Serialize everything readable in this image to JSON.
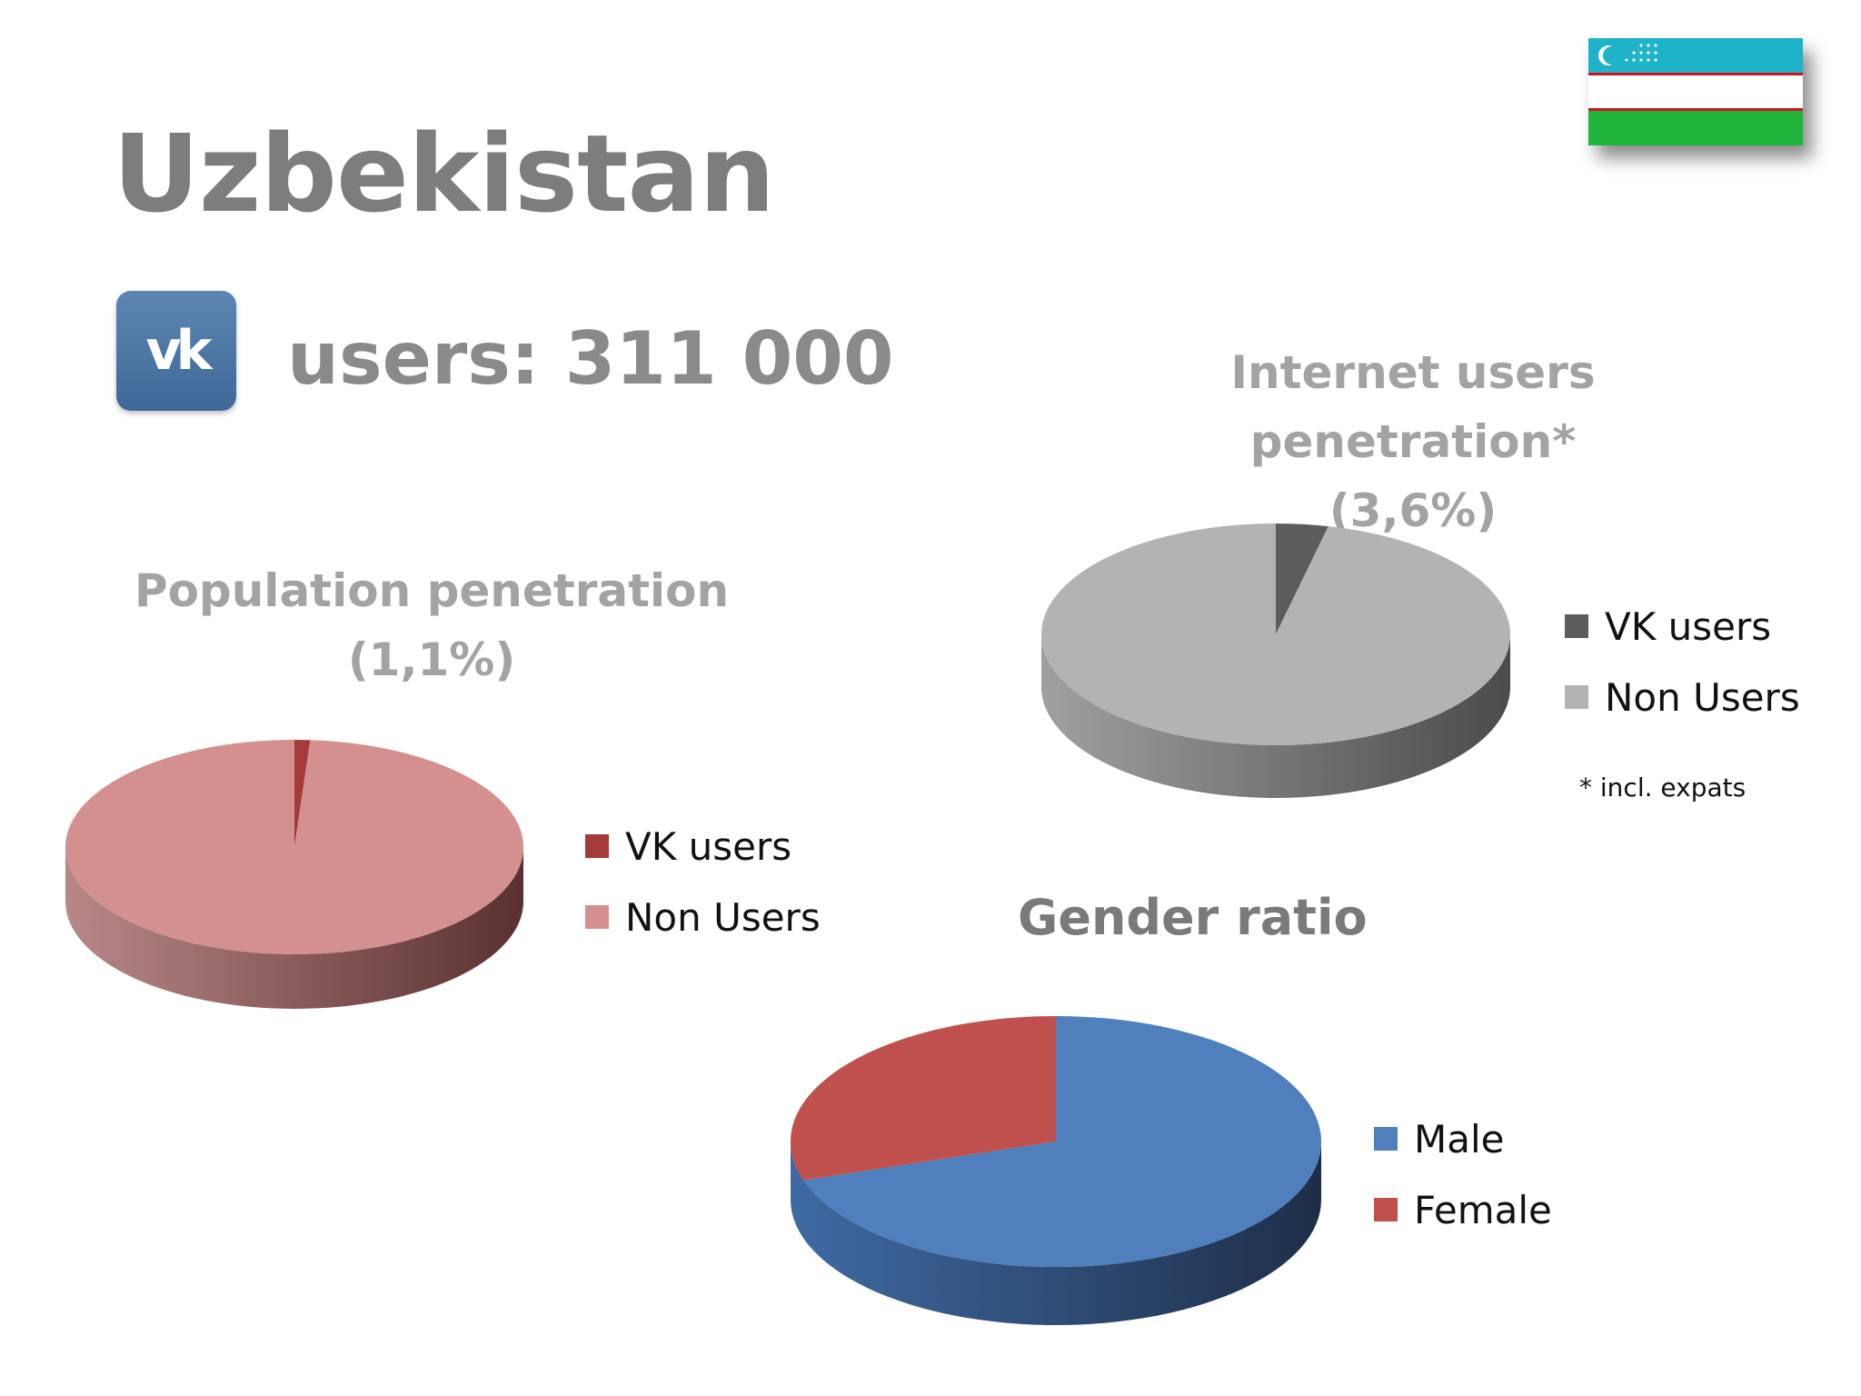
{
  "page": {
    "title": "Uzbekistan",
    "users_label": "users: 311 000",
    "logo_text": "vk",
    "footnote": "* incl. expats"
  },
  "colors": {
    "flag_blue": "#1eb3c8",
    "flag_white": "#ffffff",
    "flag_red": "#ce1126",
    "flag_green": "#1eb53a"
  },
  "chart_data": [
    {
      "type": "pie",
      "title": "Population penetration",
      "subtitle": "(1,1%)",
      "labels": [
        "VK users",
        "Non Users"
      ],
      "values": [
        1.1,
        98.9
      ],
      "colors": [
        "#a43a3a",
        "#d3908f"
      ],
      "side_dark": "#5a3030",
      "side_light": "#b88888",
      "legend_position": "right"
    },
    {
      "type": "pie",
      "title": "Internet users penetration*",
      "subtitle": "(3,6%)",
      "labels": [
        "VK users",
        "Non Users"
      ],
      "values": [
        3.6,
        96.4
      ],
      "colors": [
        "#5c5c5c",
        "#b3b3b3"
      ],
      "side_dark": "#4b4b4b",
      "side_light": "#a0a0a0",
      "legend_position": "right"
    },
    {
      "type": "pie",
      "title": "Gender ratio",
      "subtitle": "",
      "labels": [
        "Male",
        "Female"
      ],
      "values": [
        70,
        30
      ],
      "colors": [
        "#4f80bd",
        "#c0504d"
      ],
      "side_dark": "#1e2e48",
      "side_light": "#3f6aa3",
      "legend_position": "right"
    }
  ]
}
